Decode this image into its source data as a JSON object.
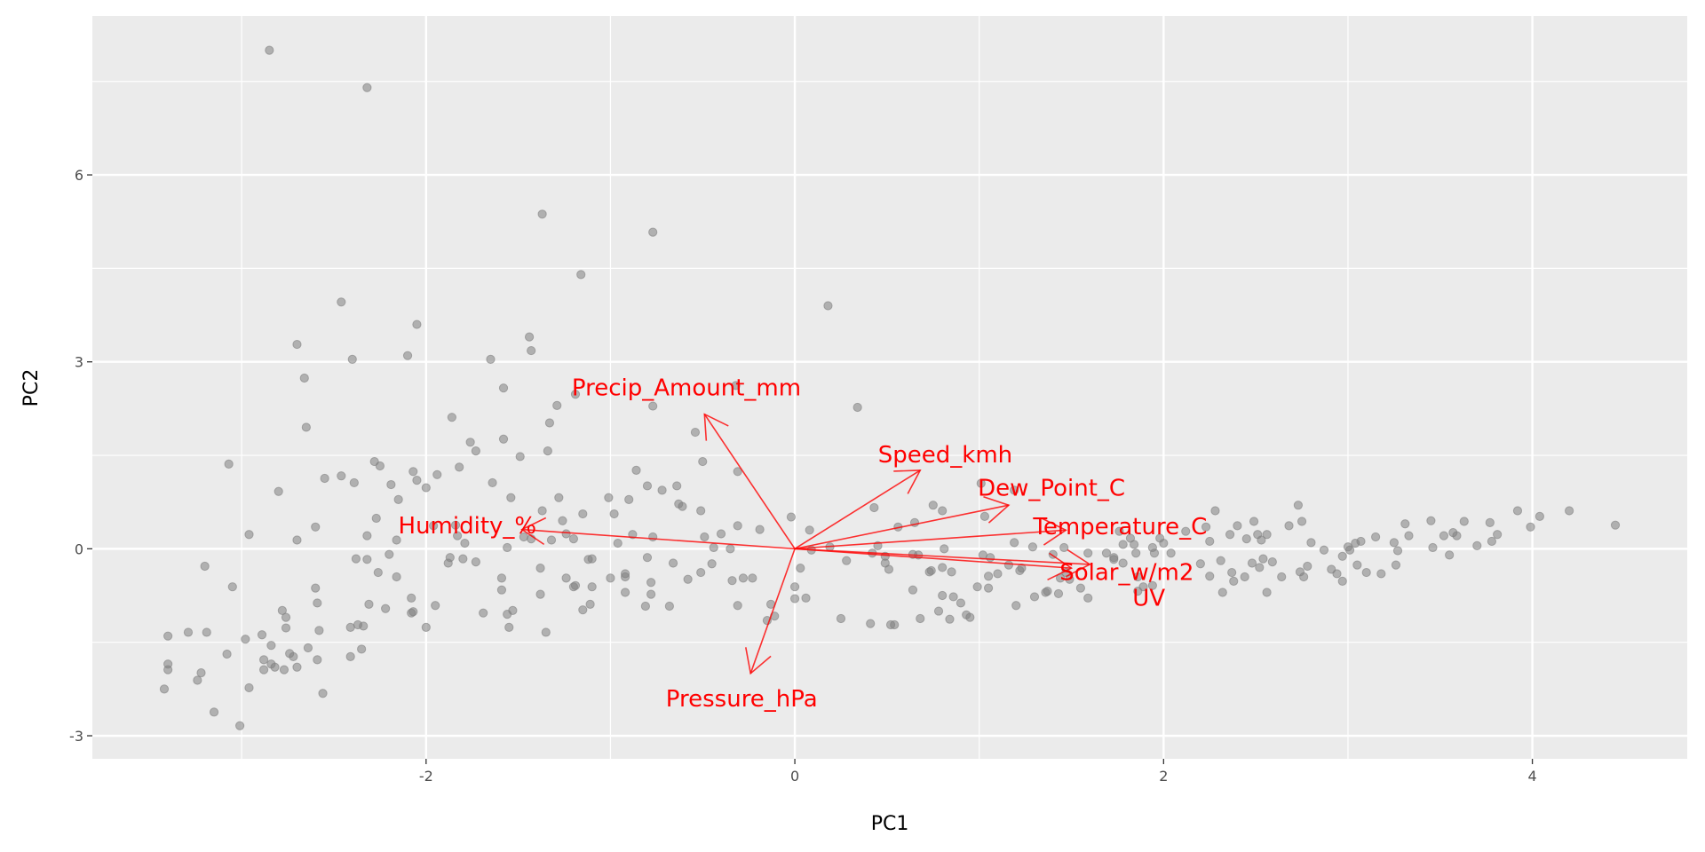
{
  "chart_data": {
    "type": "scatter",
    "subtype": "pca-biplot",
    "title": "",
    "xlabel": "PC1",
    "ylabel": "PC2",
    "xlim": [
      -3.81,
      4.84
    ],
    "ylim": [
      -3.37,
      8.55
    ],
    "x_ticks": [
      -2,
      0,
      2,
      4
    ],
    "y_ticks": [
      -3,
      0,
      3,
      6
    ],
    "x_tick_labels": [
      "-2",
      "0",
      "2",
      "4"
    ],
    "y_tick_labels": [
      "-3",
      "0",
      "3",
      "6"
    ],
    "grid": true,
    "colors": {
      "panel": "#ebebeb",
      "grid": "#ffffff",
      "points": "#808080",
      "loadings": "#ff0000"
    },
    "loadings": [
      {
        "name": "Precip_Amount_mm",
        "x": -0.49,
        "y": 2.16
      },
      {
        "name": "Speed_kmh",
        "x": 0.68,
        "y": 1.26
      },
      {
        "name": "Dew_Point_C",
        "x": 1.16,
        "y": 0.7
      },
      {
        "name": "Temperature_C",
        "x": 1.47,
        "y": 0.3
      },
      {
        "name": "Solar_w/m2",
        "x": 1.5,
        "y": -0.31
      },
      {
        "name": "UV",
        "x": 1.6,
        "y": -0.25
      },
      {
        "name": "Humidity_%",
        "x": -1.48,
        "y": 0.31
      },
      {
        "name": "Pressure_hPa",
        "x": -0.24,
        "y": -2.0
      }
    ],
    "label_scale": 1.2,
    "points": [
      [
        -2.85,
        8.0
      ],
      [
        -2.32,
        7.4
      ],
      [
        -1.37,
        5.37
      ],
      [
        -0.77,
        5.08
      ],
      [
        -1.16,
        4.4
      ],
      [
        0.18,
        3.9
      ],
      [
        -2.46,
        3.96
      ],
      [
        -2.05,
        3.6
      ],
      [
        -2.7,
        3.28
      ],
      [
        -1.44,
        3.4
      ],
      [
        -1.43,
        3.18
      ],
      [
        -2.1,
        3.1
      ],
      [
        -2.4,
        3.04
      ],
      [
        -1.65,
        3.04
      ],
      [
        -2.66,
        2.74
      ],
      [
        -1.29,
        2.3
      ],
      [
        -1.58,
        2.58
      ],
      [
        -1.19,
        2.48
      ],
      [
        -0.77,
        2.29
      ],
      [
        0.34,
        2.27
      ],
      [
        -0.32,
        2.62
      ],
      [
        -2.65,
        1.95
      ],
      [
        -1.86,
        2.11
      ],
      [
        -1.33,
        2.02
      ],
      [
        -0.54,
        1.87
      ],
      [
        -1.76,
        1.71
      ],
      [
        -1.58,
        1.76
      ],
      [
        -1.73,
        1.57
      ],
      [
        -1.34,
        1.57
      ],
      [
        -1.49,
        1.48
      ],
      [
        -3.07,
        1.36
      ],
      [
        -0.5,
        1.4
      ],
      [
        -2.28,
        1.4
      ],
      [
        -2.25,
        1.33
      ],
      [
        -1.82,
        1.31
      ],
      [
        -0.31,
        1.24
      ],
      [
        -0.86,
        1.26
      ],
      [
        -2.07,
        1.24
      ],
      [
        -1.94,
        1.19
      ],
      [
        -2.46,
        1.17
      ],
      [
        -2.55,
        1.13
      ],
      [
        -2.05,
        1.1
      ],
      [
        -2.39,
        1.06
      ],
      [
        -1.64,
        1.06
      ],
      [
        -2.19,
        1.03
      ],
      [
        -0.8,
        1.01
      ],
      [
        -0.64,
        1.01
      ],
      [
        -2.8,
        0.92
      ],
      [
        -2.0,
        0.98
      ],
      [
        -0.72,
        0.94
      ],
      [
        -1.54,
        0.82
      ],
      [
        -1.28,
        0.82
      ],
      [
        -0.9,
        0.79
      ],
      [
        -2.15,
        0.79
      ],
      [
        -1.01,
        0.82
      ],
      [
        -0.63,
        0.72
      ],
      [
        -0.61,
        0.68
      ],
      [
        -1.15,
        0.56
      ],
      [
        -0.98,
        0.56
      ],
      [
        -0.51,
        0.61
      ],
      [
        -1.37,
        0.61
      ],
      [
        -2.27,
        0.49
      ],
      [
        -0.02,
        0.51
      ],
      [
        -2.6,
        0.35
      ],
      [
        -1.26,
        0.45
      ],
      [
        -0.31,
        0.37
      ],
      [
        -0.19,
        0.31
      ],
      [
        -1.96,
        0.37
      ],
      [
        -1.84,
        0.38
      ],
      [
        -2.96,
        0.23
      ],
      [
        -2.7,
        0.14
      ],
      [
        -2.16,
        0.14
      ],
      [
        -2.32,
        0.21
      ],
      [
        -1.83,
        0.21
      ],
      [
        -1.47,
        0.19
      ],
      [
        -1.43,
        0.16
      ],
      [
        -1.32,
        0.14
      ],
      [
        -1.24,
        0.24
      ],
      [
        -1.2,
        0.16
      ],
      [
        -0.88,
        0.23
      ],
      [
        -0.77,
        0.19
      ],
      [
        -0.49,
        0.19
      ],
      [
        -0.4,
        0.24
      ],
      [
        0.08,
        0.3
      ],
      [
        -1.79,
        0.09
      ],
      [
        -0.96,
        0.09
      ],
      [
        -1.56,
        0.02
      ],
      [
        -0.44,
        0.02
      ],
      [
        -0.35,
        0.0
      ],
      [
        0.09,
        -0.02
      ],
      [
        -1.88,
        -0.23
      ],
      [
        -1.87,
        -0.14
      ],
      [
        -1.8,
        -0.16
      ],
      [
        -2.38,
        -0.16
      ],
      [
        -2.32,
        -0.17
      ],
      [
        -2.2,
        -0.09
      ],
      [
        -3.2,
        -0.28
      ],
      [
        -1.73,
        -0.21
      ],
      [
        -1.12,
        -0.17
      ],
      [
        -1.1,
        -0.16
      ],
      [
        -0.8,
        -0.14
      ],
      [
        -0.66,
        -0.23
      ],
      [
        -0.45,
        -0.24
      ],
      [
        0.28,
        -0.19
      ],
      [
        0.03,
        -0.31
      ],
      [
        -2.26,
        -0.38
      ],
      [
        -2.16,
        -0.45
      ],
      [
        -1.38,
        -0.31
      ],
      [
        -1.24,
        -0.47
      ],
      [
        -1.0,
        -0.47
      ],
      [
        -0.92,
        -0.45
      ],
      [
        -0.92,
        -0.4
      ],
      [
        -0.51,
        -0.38
      ],
      [
        -0.34,
        -0.51
      ],
      [
        -0.28,
        -0.47
      ],
      [
        -0.23,
        -0.47
      ],
      [
        -0.58,
        -0.49
      ],
      [
        -1.59,
        -0.47
      ],
      [
        -1.2,
        -0.61
      ],
      [
        -1.19,
        -0.59
      ],
      [
        -1.1,
        -0.61
      ],
      [
        -0.78,
        -0.54
      ],
      [
        0.0,
        -0.61
      ],
      [
        -3.05,
        -0.61
      ],
      [
        -2.6,
        -0.63
      ],
      [
        -1.59,
        -0.66
      ],
      [
        -0.92,
        -0.7
      ],
      [
        -1.38,
        -0.73
      ],
      [
        -0.78,
        -0.73
      ],
      [
        0.06,
        -0.79
      ],
      [
        0.0,
        -0.8
      ],
      [
        -2.59,
        -0.87
      ],
      [
        -2.31,
        -0.89
      ],
      [
        -2.08,
        -0.79
      ],
      [
        -1.95,
        -0.91
      ],
      [
        -1.11,
        -0.89
      ],
      [
        -0.31,
        -0.91
      ],
      [
        -0.13,
        -0.89
      ],
      [
        -1.15,
        -0.98
      ],
      [
        -0.81,
        -0.92
      ],
      [
        -0.68,
        -0.92
      ],
      [
        -1.69,
        -1.03
      ],
      [
        -1.53,
        -0.99
      ],
      [
        -1.56,
        -1.05
      ],
      [
        -2.78,
        -0.99
      ],
      [
        -2.76,
        -1.1
      ],
      [
        -2.08,
        -1.03
      ],
      [
        -2.07,
        -1.01
      ],
      [
        -2.22,
        -0.96
      ],
      [
        -0.11,
        -1.08
      ],
      [
        -0.15,
        -1.15
      ],
      [
        -2.41,
        -1.26
      ],
      [
        -2.76,
        -1.27
      ],
      [
        -2.0,
        -1.26
      ],
      [
        -2.37,
        -1.22
      ],
      [
        -2.34,
        -1.24
      ],
      [
        -1.55,
        -1.26
      ],
      [
        -2.58,
        -1.31
      ],
      [
        -3.4,
        -1.4
      ],
      [
        -3.29,
        -1.34
      ],
      [
        -3.19,
        -1.34
      ],
      [
        -2.89,
        -1.38
      ],
      [
        -2.98,
        -1.45
      ],
      [
        -1.35,
        -1.34
      ],
      [
        -2.84,
        -1.55
      ],
      [
        -2.64,
        -1.59
      ],
      [
        -2.35,
        -1.61
      ],
      [
        -3.08,
        -1.69
      ],
      [
        -2.74,
        -1.68
      ],
      [
        -2.72,
        -1.73
      ],
      [
        -2.41,
        -1.73
      ],
      [
        -2.88,
        -1.78
      ],
      [
        -2.59,
        -1.78
      ],
      [
        -3.4,
        -1.85
      ],
      [
        -3.4,
        -1.94
      ],
      [
        -3.22,
        -1.99
      ],
      [
        -2.84,
        -1.85
      ],
      [
        -2.88,
        -1.94
      ],
      [
        -2.82,
        -1.9
      ],
      [
        -2.77,
        -1.94
      ],
      [
        -2.7,
        -1.9
      ],
      [
        -3.24,
        -2.11
      ],
      [
        -2.96,
        -2.23
      ],
      [
        -3.42,
        -2.25
      ],
      [
        -2.56,
        -2.32
      ],
      [
        -3.15,
        -2.62
      ],
      [
        -3.01,
        -2.84
      ],
      [
        0.19,
        0.03
      ],
      [
        0.43,
        0.66
      ],
      [
        0.45,
        0.05
      ],
      [
        0.42,
        -0.07
      ],
      [
        0.49,
        -0.12
      ],
      [
        0.49,
        -0.23
      ],
      [
        0.51,
        -0.33
      ],
      [
        0.56,
        0.35
      ],
      [
        0.65,
        0.42
      ],
      [
        0.75,
        0.7
      ],
      [
        0.8,
        0.61
      ],
      [
        0.64,
        -0.09
      ],
      [
        0.67,
        -0.1
      ],
      [
        0.64,
        -0.66
      ],
      [
        0.73,
        -0.37
      ],
      [
        0.74,
        -0.35
      ],
      [
        0.8,
        -0.3
      ],
      [
        0.85,
        -0.37
      ],
      [
        0.81,
        0.0
      ],
      [
        0.8,
        -0.75
      ],
      [
        0.86,
        -0.77
      ],
      [
        0.9,
        -0.87
      ],
      [
        0.68,
        -1.12
      ],
      [
        0.78,
        -1.0
      ],
      [
        0.84,
        -1.13
      ],
      [
        0.93,
        -1.06
      ],
      [
        0.95,
        -1.1
      ],
      [
        0.41,
        -1.2
      ],
      [
        0.52,
        -1.22
      ],
      [
        0.54,
        -1.22
      ],
      [
        0.25,
        -1.12
      ],
      [
        1.01,
        1.05
      ],
      [
        1.19,
        0.94
      ],
      [
        1.03,
        0.52
      ],
      [
        1.02,
        -0.1
      ],
      [
        1.06,
        -0.14
      ],
      [
        0.99,
        -0.61
      ],
      [
        1.05,
        -0.63
      ],
      [
        1.05,
        -0.44
      ],
      [
        1.1,
        -0.4
      ],
      [
        1.16,
        -0.26
      ],
      [
        1.19,
        0.1
      ],
      [
        1.23,
        -0.31
      ],
      [
        1.22,
        -0.35
      ],
      [
        1.2,
        -0.91
      ],
      [
        1.29,
        0.03
      ],
      [
        1.3,
        -0.77
      ],
      [
        1.36,
        -0.7
      ],
      [
        1.4,
        -0.09
      ],
      [
        1.37,
        -0.68
      ],
      [
        1.43,
        -0.72
      ],
      [
        1.44,
        -0.47
      ],
      [
        1.47,
        -0.38
      ],
      [
        1.49,
        -0.49
      ],
      [
        1.46,
        0.02
      ],
      [
        1.55,
        -0.63
      ],
      [
        1.59,
        -0.79
      ],
      [
        1.59,
        -0.07
      ],
      [
        1.69,
        -0.07
      ],
      [
        1.73,
        -0.14
      ],
      [
        1.73,
        -0.17
      ],
      [
        1.76,
        0.28
      ],
      [
        1.82,
        0.17
      ],
      [
        1.78,
        0.07
      ],
      [
        1.84,
        0.07
      ],
      [
        1.85,
        -0.07
      ],
      [
        1.78,
        -0.23
      ],
      [
        1.86,
        -0.45
      ],
      [
        1.86,
        -0.68
      ],
      [
        1.89,
        -0.61
      ],
      [
        1.94,
        -0.59
      ],
      [
        1.94,
        0.02
      ],
      [
        1.95,
        -0.07
      ],
      [
        1.98,
        0.17
      ],
      [
        2.0,
        0.09
      ],
      [
        2.04,
        -0.07
      ],
      [
        2.12,
        0.28
      ],
      [
        2.2,
        -0.24
      ],
      [
        2.23,
        0.35
      ],
      [
        2.25,
        0.12
      ],
      [
        2.25,
        -0.44
      ],
      [
        2.28,
        0.61
      ],
      [
        2.31,
        -0.19
      ],
      [
        2.32,
        -0.7
      ],
      [
        2.36,
        0.23
      ],
      [
        2.37,
        -0.38
      ],
      [
        2.38,
        -0.52
      ],
      [
        2.44,
        -0.45
      ],
      [
        2.4,
        0.37
      ],
      [
        2.45,
        0.16
      ],
      [
        2.48,
        -0.23
      ],
      [
        2.49,
        0.44
      ],
      [
        2.51,
        0.23
      ],
      [
        2.52,
        -0.3
      ],
      [
        2.53,
        0.14
      ],
      [
        2.54,
        -0.16
      ],
      [
        2.56,
        0.23
      ],
      [
        2.56,
        -0.7
      ],
      [
        2.59,
        -0.21
      ],
      [
        2.64,
        -0.45
      ],
      [
        2.68,
        0.37
      ],
      [
        2.73,
        0.7
      ],
      [
        2.75,
        0.44
      ],
      [
        2.74,
        -0.37
      ],
      [
        2.76,
        -0.45
      ],
      [
        2.78,
        -0.28
      ],
      [
        2.8,
        0.1
      ],
      [
        2.87,
        -0.02
      ],
      [
        2.91,
        -0.33
      ],
      [
        2.94,
        -0.4
      ],
      [
        2.97,
        -0.12
      ],
      [
        2.97,
        -0.52
      ],
      [
        3.0,
        0.03
      ],
      [
        3.01,
        -0.02
      ],
      [
        3.04,
        0.09
      ],
      [
        3.07,
        0.12
      ],
      [
        3.05,
        -0.26
      ],
      [
        3.1,
        -0.38
      ],
      [
        3.15,
        0.19
      ],
      [
        3.18,
        -0.4
      ],
      [
        3.25,
        0.1
      ],
      [
        3.26,
        -0.26
      ],
      [
        3.27,
        -0.03
      ],
      [
        3.31,
        0.4
      ],
      [
        3.33,
        0.21
      ],
      [
        3.45,
        0.45
      ],
      [
        3.46,
        0.02
      ],
      [
        3.52,
        0.21
      ],
      [
        3.55,
        -0.1
      ],
      [
        3.57,
        0.26
      ],
      [
        3.59,
        0.21
      ],
      [
        3.63,
        0.44
      ],
      [
        3.7,
        0.05
      ],
      [
        3.77,
        0.42
      ],
      [
        3.78,
        0.12
      ],
      [
        3.81,
        0.23
      ],
      [
        3.92,
        0.61
      ],
      [
        3.99,
        0.35
      ],
      [
        4.04,
        0.52
      ],
      [
        4.2,
        0.61
      ],
      [
        4.45,
        0.38
      ]
    ]
  }
}
